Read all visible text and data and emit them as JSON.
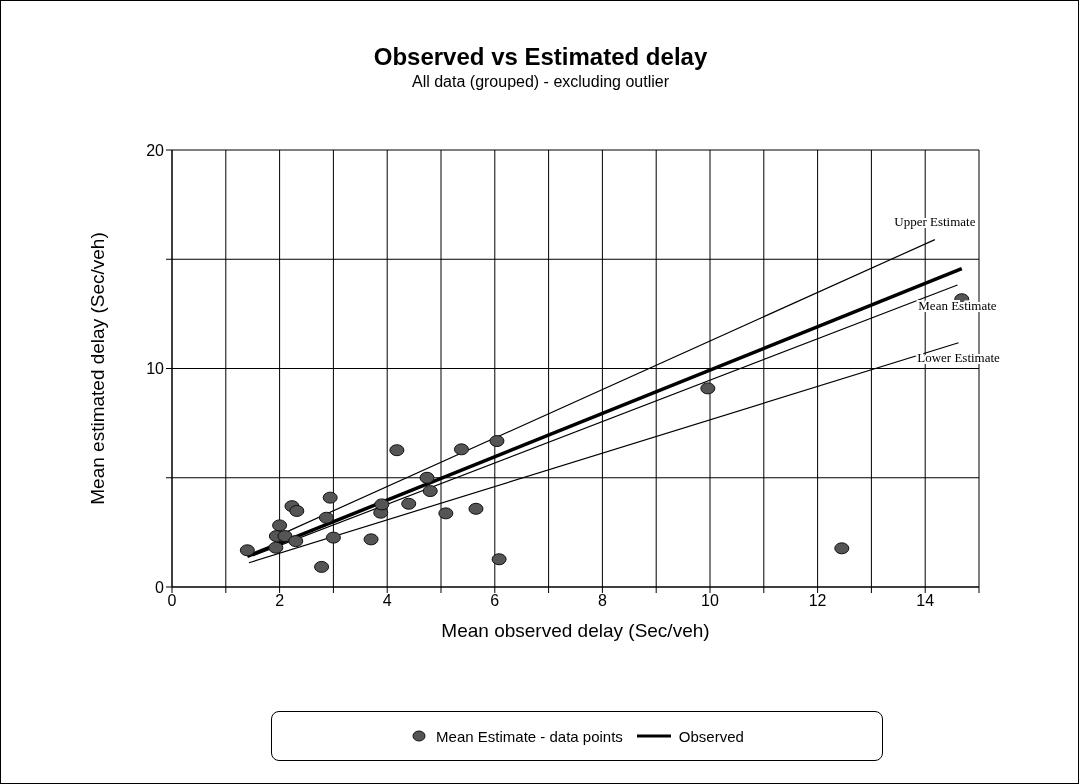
{
  "chart_data": {
    "type": "scatter",
    "title": "Observed vs Estimated delay",
    "subtitle": "All data (grouped) - excluding outlier",
    "xlabel": "Mean observed delay (Sec/veh)",
    "ylabel": "Mean estimated delay (Sec/veh)",
    "xlim": [
      0,
      15
    ],
    "xticks": [
      0,
      {
        "value": 1,
        "label": null
      },
      2,
      {
        "value": 3,
        "label": null
      },
      4,
      {
        "value": 5,
        "label": null
      },
      6,
      {
        "value": 7,
        "label": null
      },
      8,
      {
        "value": 9,
        "label": null
      },
      10,
      {
        "value": 11,
        "label": null
      },
      12,
      {
        "value": 13,
        "label": null
      },
      14,
      {
        "value": 15,
        "label": null
      }
    ],
    "ylim": [
      0,
      20
    ],
    "yticks": [
      0,
      {
        "value": 5,
        "label": null
      },
      10,
      {
        "value": 15,
        "label": null
      },
      20
    ],
    "grid": true,
    "legend": "bottom",
    "marker": "circle",
    "series": [
      {
        "name": "Mean Estimate - data points",
        "color": "#555555",
        "x": [
          1.4,
          2.0,
          1.94,
          1.93,
          2.1,
          2.3,
          2.23,
          2.32,
          2.94,
          2.87,
          3.0,
          2.78,
          3.7,
          3.88,
          3.9,
          4.18,
          4.4,
          4.74,
          4.8,
          5.38,
          5.09,
          5.65,
          6.04,
          6.08,
          9.96,
          12.45,
          14.68
        ],
        "values": [
          1.68,
          2.82,
          2.33,
          1.8,
          2.33,
          2.1,
          3.7,
          3.48,
          4.09,
          3.17,
          2.26,
          0.92,
          2.18,
          3.4,
          3.78,
          6.26,
          3.81,
          5.0,
          4.39,
          6.3,
          3.37,
          3.58,
          6.68,
          1.27,
          9.09,
          1.77,
          13.17
        ]
      },
      {
        "name": "Observed",
        "type": "line",
        "marker": "none",
        "color": "#000000",
        "x": [
          1.4,
          14.68
        ],
        "values": [
          1.4,
          14.57
        ]
      },
      {
        "type": "line",
        "marker": "none",
        "color": "#000000",
        "x": [
          2.1,
          14.18
        ],
        "values": [
          2.49,
          15.9
        ]
      },
      {
        "type": "line",
        "marker": "none",
        "color": "#000000",
        "x": [
          1.5,
          14.6
        ],
        "values": [
          1.42,
          13.82
        ]
      },
      {
        "type": "line",
        "marker": "none",
        "color": "#000000",
        "x": [
          1.43,
          14.62
        ],
        "values": [
          1.11,
          11.18
        ]
      }
    ],
    "annotations": [
      {
        "text": "Upper Estimate",
        "x": 14.18,
        "y": 15.9
      },
      {
        "text": "Mean Estimate",
        "x": 14.6,
        "y": 13.82
      },
      {
        "text": "Lower Estimate",
        "x": 14.62,
        "y": 11.18
      }
    ]
  }
}
